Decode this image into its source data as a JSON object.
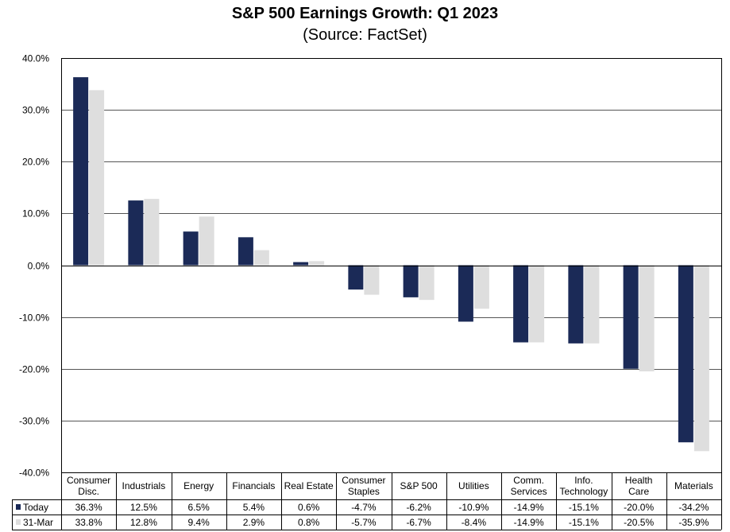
{
  "chart_data": {
    "type": "bar",
    "title": "S&P 500 Earnings Growth: Q1 2023",
    "subtitle": "(Source: FactSet)",
    "categories": [
      [
        "Consumer",
        "Disc."
      ],
      [
        "Industrials"
      ],
      [
        "Energy"
      ],
      [
        "Financials"
      ],
      [
        "Real Estate"
      ],
      [
        "Consumer",
        "Staples"
      ],
      [
        "S&P 500"
      ],
      [
        "Utilities"
      ],
      [
        "Comm.",
        "Services"
      ],
      [
        "Info.",
        "Technology"
      ],
      [
        "Health",
        "Care"
      ],
      [
        "Materials"
      ]
    ],
    "series": [
      {
        "name": "Today",
        "color": "#1b2a57",
        "values": [
          36.3,
          12.5,
          6.5,
          5.4,
          0.6,
          -4.7,
          -6.2,
          -10.9,
          -14.9,
          -15.1,
          -20.0,
          -34.2
        ],
        "labels": [
          "36.3%",
          "12.5%",
          "6.5%",
          "5.4%",
          "0.6%",
          "-4.7%",
          "-6.2%",
          "-10.9%",
          "-14.9%",
          "-15.1%",
          "-20.0%",
          "-34.2%"
        ]
      },
      {
        "name": "31-Mar",
        "color": "#dedede",
        "values": [
          33.8,
          12.8,
          9.4,
          2.9,
          0.8,
          -5.7,
          -6.7,
          -8.4,
          -14.9,
          -15.1,
          -20.5,
          -35.9
        ],
        "labels": [
          "33.8%",
          "12.8%",
          "9.4%",
          "2.9%",
          "0.8%",
          "-5.7%",
          "-6.7%",
          "-8.4%",
          "-14.9%",
          "-15.1%",
          "-20.5%",
          "-35.9%"
        ]
      }
    ],
    "ylim": [
      -40,
      40
    ],
    "yticks": [
      40,
      30,
      20,
      10,
      0,
      -10,
      -20,
      -30,
      -40
    ],
    "ytick_labels": [
      "40.0%",
      "30.0%",
      "20.0%",
      "10.0%",
      "0.0%",
      "-10.0%",
      "-20.0%",
      "-30.0%",
      "-40.0%"
    ],
    "grid": true,
    "legend": "data-table"
  }
}
